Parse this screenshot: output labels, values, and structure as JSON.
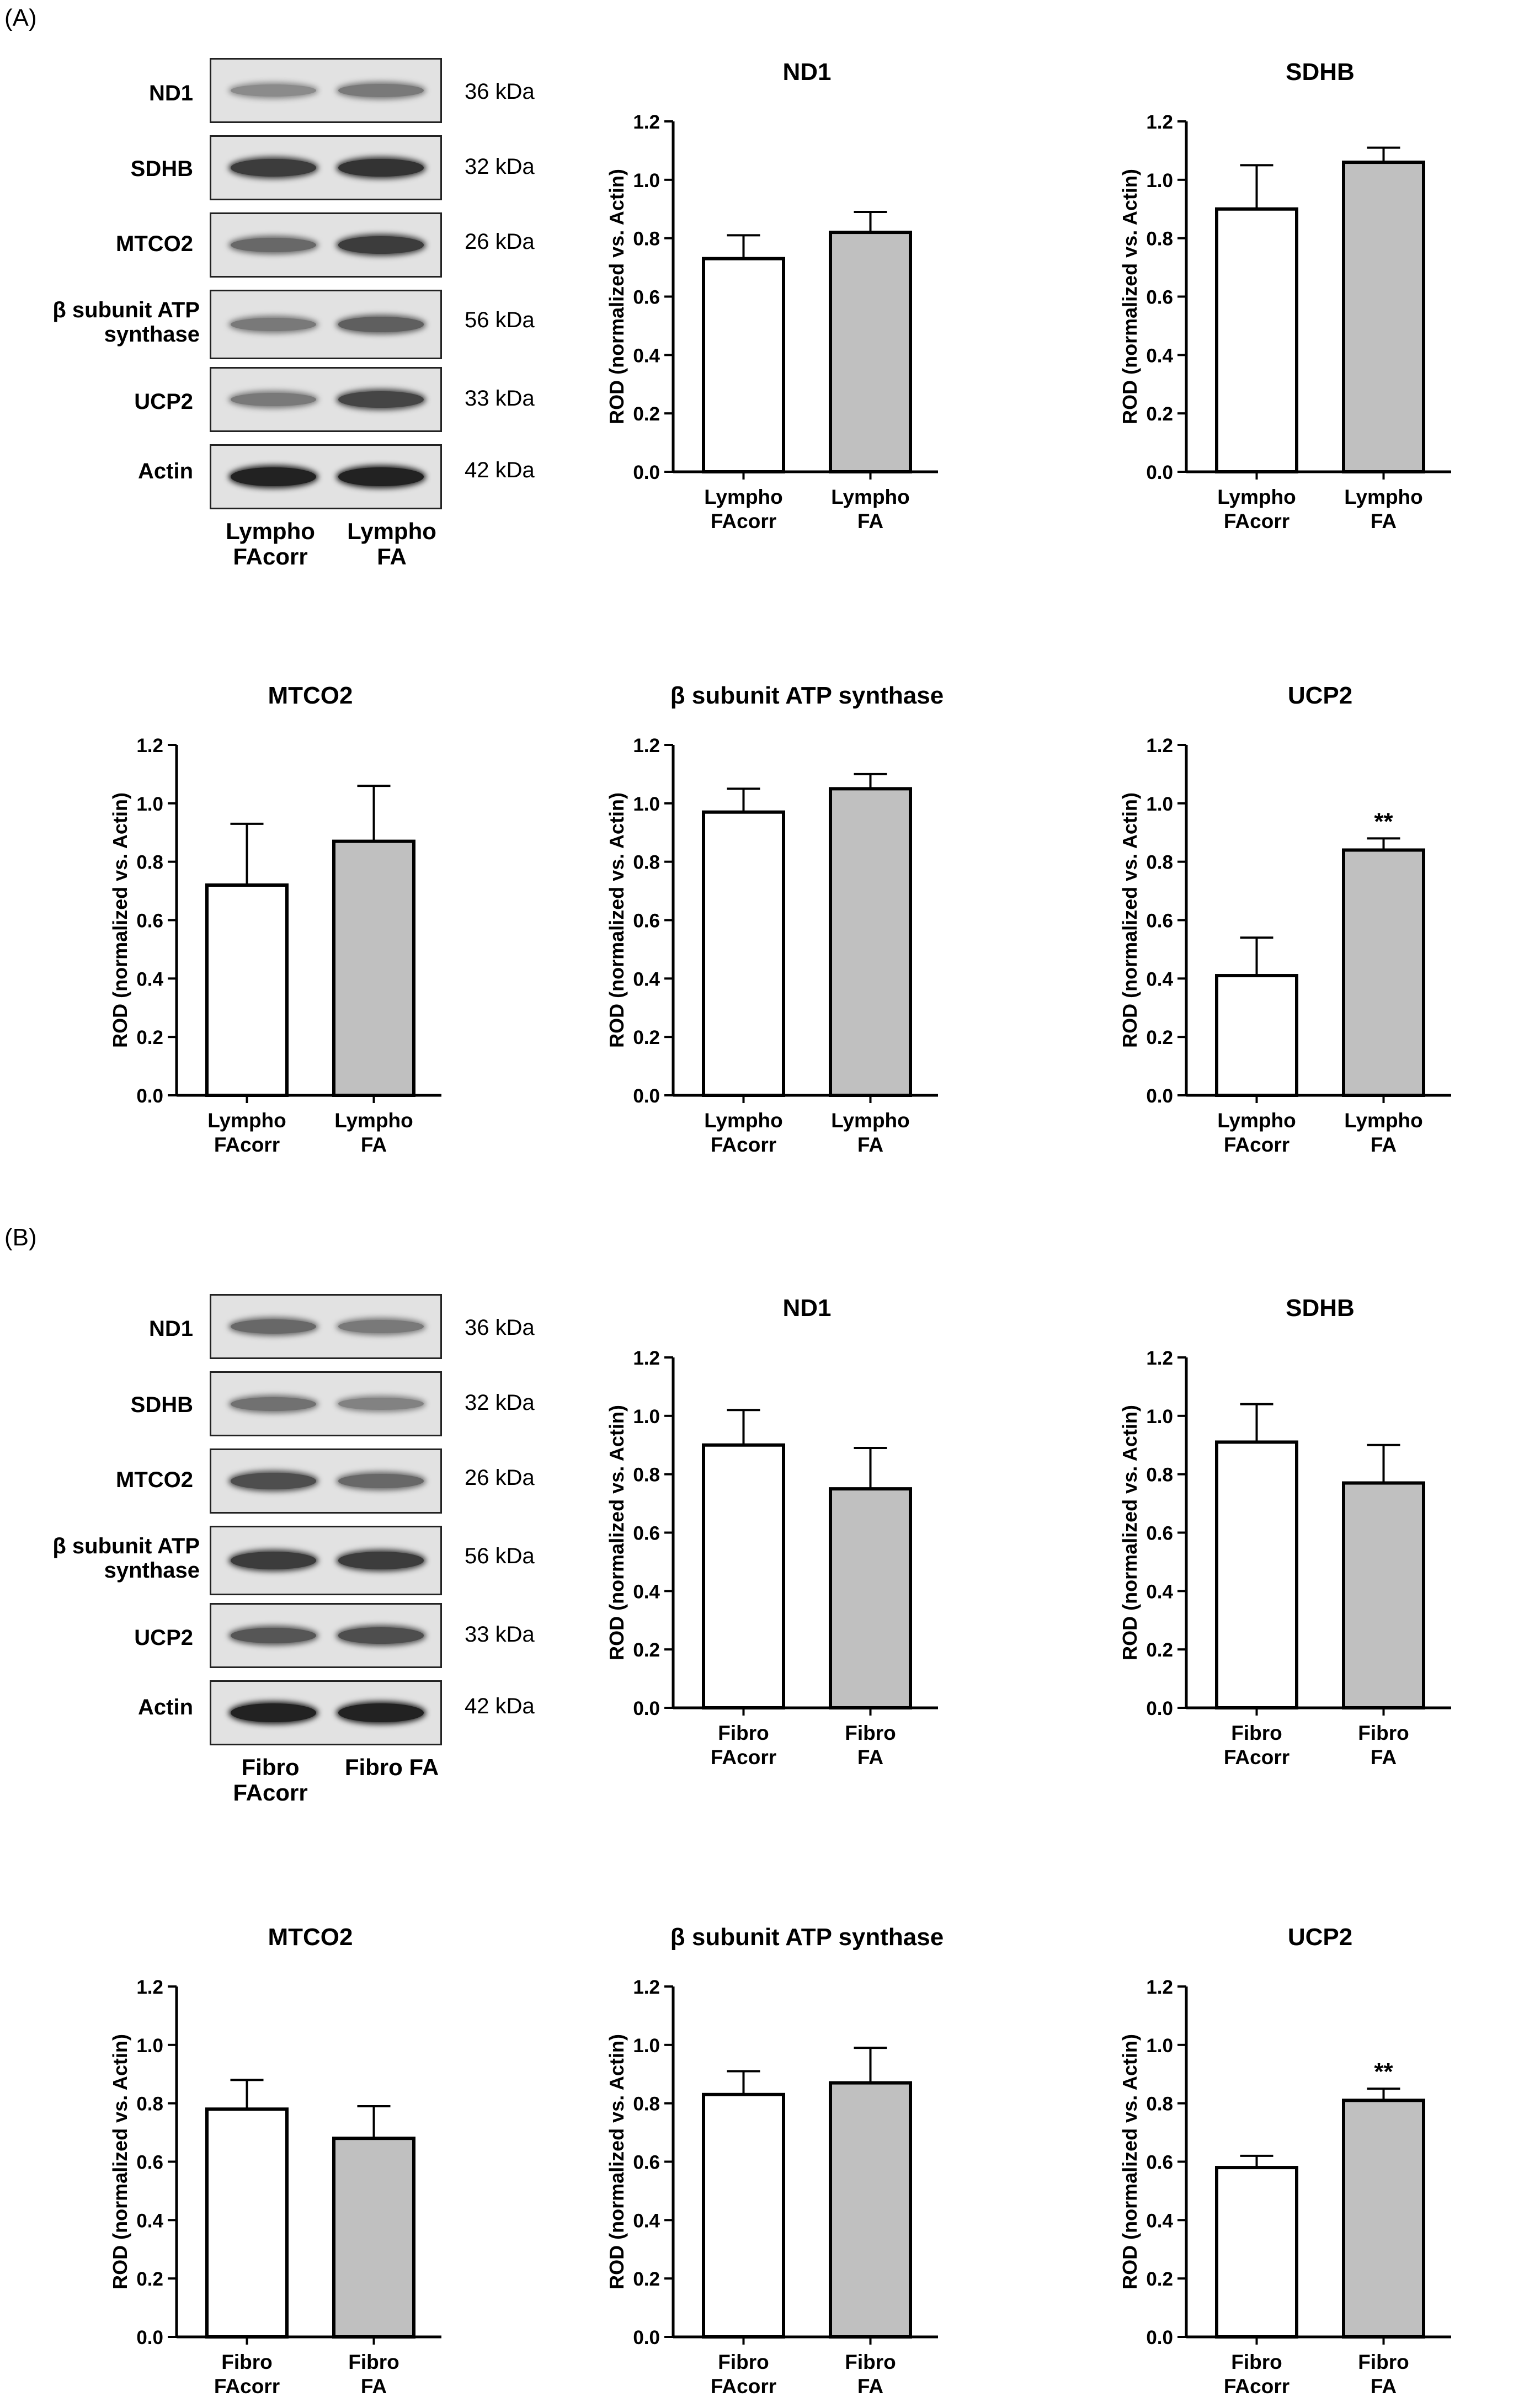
{
  "panels": [
    {
      "label": "(A)",
      "blot": {
        "rows": [
          {
            "label": "ND1",
            "kda": "36 kDa",
            "band": [
              0.35,
              0.45
            ]
          },
          {
            "label": "SDHB",
            "kda": "32 kDa",
            "band": [
              0.8,
              0.85
            ]
          },
          {
            "label": "MTCO2",
            "kda": "26 kDa",
            "band": [
              0.55,
              0.8
            ]
          },
          {
            "label": "β subunit ATP synthase",
            "kda": "56 kDa",
            "band": [
              0.45,
              0.6
            ]
          },
          {
            "label": "UCP2",
            "kda": "33 kDa",
            "band": [
              0.45,
              0.75
            ]
          },
          {
            "label": "Actin",
            "kda": "42 kDa",
            "band": [
              0.95,
              0.95
            ]
          }
        ],
        "lanes": [
          "Lympho FAcorr",
          "Lympho FA"
        ]
      }
    },
    {
      "label": "(B)",
      "blot": {
        "rows": [
          {
            "label": "ND1",
            "kda": "36 kDa",
            "band": [
              0.55,
              0.45
            ]
          },
          {
            "label": "SDHB",
            "kda": "32 kDa",
            "band": [
              0.5,
              0.4
            ]
          },
          {
            "label": "MTCO2",
            "kda": "26 kDa",
            "band": [
              0.7,
              0.55
            ]
          },
          {
            "label": "β subunit ATP synthase",
            "kda": "56 kDa",
            "band": [
              0.8,
              0.8
            ]
          },
          {
            "label": "UCP2",
            "kda": "33 kDa",
            "band": [
              0.65,
              0.7
            ]
          },
          {
            "label": "Actin",
            "kda": "42 kDa",
            "band": [
              0.95,
              0.95
            ]
          }
        ],
        "lanes": [
          "Fibro FAcorr",
          "Fibro FA"
        ]
      }
    }
  ],
  "colors": {
    "control_bar": "#ffffff",
    "fa_bar": "#c0c0c0",
    "stroke": "#000000"
  },
  "chart_data": [
    {
      "type": "bar",
      "title": "ND1",
      "ylabel": "ROD (normalized vs. Actin)",
      "ylim": [
        0,
        1.2
      ],
      "yticks": [
        "0.0",
        "0.2",
        "0.4",
        "0.6",
        "0.8",
        "1.0",
        "1.2"
      ],
      "categories": [
        [
          "Lympho",
          "FAcorr"
        ],
        [
          "Lympho",
          "FA"
        ]
      ],
      "values": [
        0.73,
        0.82
      ],
      "errors": [
        0.08,
        0.07
      ],
      "annotation": [
        "",
        ""
      ]
    },
    {
      "type": "bar",
      "title": "SDHB",
      "ylabel": "ROD (normalized vs. Actin)",
      "ylim": [
        0,
        1.2
      ],
      "yticks": [
        "0.0",
        "0.2",
        "0.4",
        "0.6",
        "0.8",
        "1.0",
        "1.2"
      ],
      "categories": [
        [
          "Lympho",
          "FAcorr"
        ],
        [
          "Lympho",
          "FA"
        ]
      ],
      "values": [
        0.9,
        1.06
      ],
      "errors": [
        0.15,
        0.05
      ],
      "annotation": [
        "",
        ""
      ]
    },
    {
      "type": "bar",
      "title": "MTCO2",
      "ylabel": "ROD (normalized vs. Actin)",
      "ylim": [
        0,
        1.2
      ],
      "yticks": [
        "0.0",
        "0.2",
        "0.4",
        "0.6",
        "0.8",
        "1.0",
        "1.2"
      ],
      "categories": [
        [
          "Lympho",
          "FAcorr"
        ],
        [
          "Lympho",
          "FA"
        ]
      ],
      "values": [
        0.72,
        0.87
      ],
      "errors": [
        0.21,
        0.19
      ],
      "annotation": [
        "",
        ""
      ]
    },
    {
      "type": "bar",
      "title": "β subunit ATP synthase",
      "ylabel": "ROD (normalized vs. Actin)",
      "ylim": [
        0,
        1.2
      ],
      "yticks": [
        "0.0",
        "0.2",
        "0.4",
        "0.6",
        "0.8",
        "1.0",
        "1.2"
      ],
      "categories": [
        [
          "Lympho",
          "FAcorr"
        ],
        [
          "Lympho",
          "FA"
        ]
      ],
      "values": [
        0.97,
        1.05
      ],
      "errors": [
        0.08,
        0.05
      ],
      "annotation": [
        "",
        ""
      ]
    },
    {
      "type": "bar",
      "title": "UCP2",
      "ylabel": "ROD (normalized vs. Actin)",
      "ylim": [
        0,
        1.2
      ],
      "yticks": [
        "0.0",
        "0.2",
        "0.4",
        "0.6",
        "0.8",
        "1.0",
        "1.2"
      ],
      "categories": [
        [
          "Lympho",
          "FAcorr"
        ],
        [
          "Lympho",
          "FA"
        ]
      ],
      "values": [
        0.41,
        0.84
      ],
      "errors": [
        0.13,
        0.04
      ],
      "annotation": [
        "",
        "**"
      ]
    },
    {
      "type": "bar",
      "title": "ND1",
      "ylabel": "ROD (normalized vs. Actin)",
      "ylim": [
        0,
        1.2
      ],
      "yticks": [
        "0.0",
        "0.2",
        "0.4",
        "0.6",
        "0.8",
        "1.0",
        "1.2"
      ],
      "categories": [
        [
          "Fibro",
          "FAcorr"
        ],
        [
          "Fibro",
          "FA"
        ]
      ],
      "values": [
        0.9,
        0.75
      ],
      "errors": [
        0.12,
        0.14
      ],
      "annotation": [
        "",
        ""
      ]
    },
    {
      "type": "bar",
      "title": "SDHB",
      "ylabel": "ROD (normalized vs. Actin)",
      "ylim": [
        0,
        1.2
      ],
      "yticks": [
        "0.0",
        "0.2",
        "0.4",
        "0.6",
        "0.8",
        "1.0",
        "1.2"
      ],
      "categories": [
        [
          "Fibro",
          "FAcorr"
        ],
        [
          "Fibro",
          "FA"
        ]
      ],
      "values": [
        0.91,
        0.77
      ],
      "errors": [
        0.13,
        0.13
      ],
      "annotation": [
        "",
        ""
      ]
    },
    {
      "type": "bar",
      "title": "MTCO2",
      "ylabel": "ROD (normalized vs. Actin)",
      "ylim": [
        0,
        1.2
      ],
      "yticks": [
        "0.0",
        "0.2",
        "0.4",
        "0.6",
        "0.8",
        "1.0",
        "1.2"
      ],
      "categories": [
        [
          "Fibro",
          "FAcorr"
        ],
        [
          "Fibro",
          "FA"
        ]
      ],
      "values": [
        0.78,
        0.68
      ],
      "errors": [
        0.1,
        0.11
      ],
      "annotation": [
        "",
        ""
      ]
    },
    {
      "type": "bar",
      "title": "β subunit ATP synthase",
      "ylabel": "ROD (normalized vs. Actin)",
      "ylim": [
        0,
        1.2
      ],
      "yticks": [
        "0.0",
        "0.2",
        "0.4",
        "0.6",
        "0.8",
        "1.0",
        "1.2"
      ],
      "categories": [
        [
          "Fibro",
          "FAcorr"
        ],
        [
          "Fibro",
          "FA"
        ]
      ],
      "values": [
        0.83,
        0.87
      ],
      "errors": [
        0.08,
        0.12
      ],
      "annotation": [
        "",
        ""
      ]
    },
    {
      "type": "bar",
      "title": "UCP2",
      "ylabel": "ROD (normalized vs. Actin)",
      "ylim": [
        0,
        1.2
      ],
      "yticks": [
        "0.0",
        "0.2",
        "0.4",
        "0.6",
        "0.8",
        "1.0",
        "1.2"
      ],
      "categories": [
        [
          "Fibro",
          "FAcorr"
        ],
        [
          "Fibro",
          "FA"
        ]
      ],
      "values": [
        0.58,
        0.81
      ],
      "errors": [
        0.04,
        0.04
      ],
      "annotation": [
        "",
        "**"
      ]
    }
  ]
}
